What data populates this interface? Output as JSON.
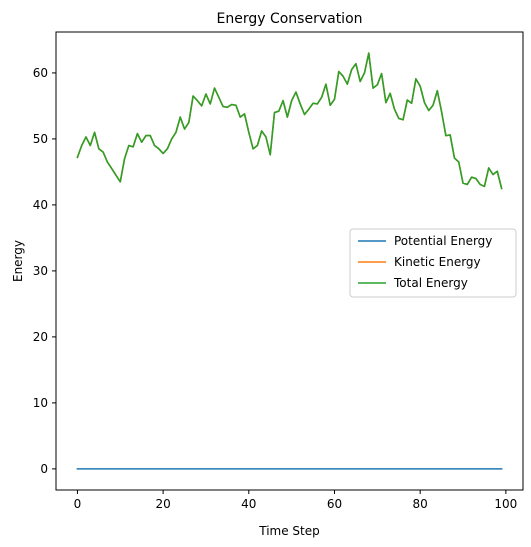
{
  "chart_data": {
    "type": "line",
    "title": "Energy Conservation",
    "xlabel": "Time Step",
    "ylabel": "Energy",
    "xlim": [
      -5,
      104
    ],
    "ylim": [
      -3.2,
      66.2
    ],
    "xticks": [
      0,
      20,
      40,
      60,
      80,
      100
    ],
    "yticks": [
      0,
      10,
      20,
      30,
      40,
      50,
      60
    ],
    "grid": false,
    "legend_position": "center-right",
    "colors": {
      "potential": "#1f77b4",
      "kinetic": "#ff7f0e",
      "total": "#2ca02c"
    },
    "series": [
      {
        "name": "Potential Energy",
        "color": "#1f77b4",
        "x": [
          0,
          99
        ],
        "values": [
          0,
          0
        ]
      },
      {
        "name": "Kinetic Energy",
        "color": "#ff7f0e",
        "x": [
          0,
          1,
          2,
          3,
          4,
          5,
          6,
          7,
          8,
          9,
          10,
          11,
          12,
          13,
          14,
          15,
          16,
          17,
          18,
          19,
          20,
          21,
          22,
          23,
          24,
          25,
          26,
          27,
          28,
          29,
          30,
          31,
          32,
          33,
          34,
          35,
          36,
          37,
          38,
          39,
          40,
          41,
          42,
          43,
          44,
          45,
          46,
          47,
          48,
          49,
          50,
          51,
          52,
          53,
          54,
          55,
          56,
          57,
          58,
          59,
          60,
          61,
          62,
          63,
          64,
          65,
          66,
          67,
          68,
          69,
          70,
          71,
          72,
          73,
          74,
          75,
          76,
          77,
          78,
          79,
          80,
          81,
          82,
          83,
          84,
          85,
          86,
          87,
          88,
          89,
          90,
          91,
          92,
          93,
          94,
          95,
          96,
          97,
          98,
          99
        ],
        "values": [
          47.2,
          49.0,
          50.3,
          49.0,
          51.0,
          48.5,
          48.0,
          46.5,
          45.5,
          44.5,
          43.5,
          47.0,
          49.0,
          48.8,
          50.8,
          49.5,
          50.5,
          50.5,
          49.0,
          48.5,
          47.8,
          48.5,
          50.0,
          51.0,
          53.3,
          51.5,
          52.5,
          56.5,
          55.8,
          55.0,
          56.8,
          55.3,
          57.7,
          56.3,
          54.9,
          54.8,
          55.2,
          55.1,
          53.3,
          53.8,
          51.0,
          48.5,
          49.0,
          51.2,
          50.3,
          47.6,
          54.0,
          54.2,
          55.8,
          53.3,
          55.8,
          57.1,
          55.3,
          53.7,
          54.5,
          55.4,
          55.3,
          56.3,
          58.3,
          55.1,
          56.0,
          60.2,
          59.5,
          58.3,
          60.5,
          61.4,
          58.7,
          60.0,
          63.0,
          57.7,
          58.2,
          59.9,
          55.5,
          56.9,
          54.5,
          53.1,
          52.9,
          55.9,
          55.4,
          59.1,
          58.0,
          55.5,
          54.3,
          55.1,
          57.3,
          54.1,
          50.5,
          50.6,
          47.1,
          46.5,
          43.3,
          43.1,
          44.2,
          44.0,
          43.1,
          42.8,
          45.6,
          44.6,
          45.1,
          42.5
        ]
      },
      {
        "name": "Total Energy",
        "color": "#2ca02c",
        "x": [
          0,
          1,
          2,
          3,
          4,
          5,
          6,
          7,
          8,
          9,
          10,
          11,
          12,
          13,
          14,
          15,
          16,
          17,
          18,
          19,
          20,
          21,
          22,
          23,
          24,
          25,
          26,
          27,
          28,
          29,
          30,
          31,
          32,
          33,
          34,
          35,
          36,
          37,
          38,
          39,
          40,
          41,
          42,
          43,
          44,
          45,
          46,
          47,
          48,
          49,
          50,
          51,
          52,
          53,
          54,
          55,
          56,
          57,
          58,
          59,
          60,
          61,
          62,
          63,
          64,
          65,
          66,
          67,
          68,
          69,
          70,
          71,
          72,
          73,
          74,
          75,
          76,
          77,
          78,
          79,
          80,
          81,
          82,
          83,
          84,
          85,
          86,
          87,
          88,
          89,
          90,
          91,
          92,
          93,
          94,
          95,
          96,
          97,
          98,
          99
        ],
        "values": [
          47.2,
          49.0,
          50.3,
          49.0,
          51.0,
          48.5,
          48.0,
          46.5,
          45.5,
          44.5,
          43.5,
          47.0,
          49.0,
          48.8,
          50.8,
          49.5,
          50.5,
          50.5,
          49.0,
          48.5,
          47.8,
          48.5,
          50.0,
          51.0,
          53.3,
          51.5,
          52.5,
          56.5,
          55.8,
          55.0,
          56.8,
          55.3,
          57.7,
          56.3,
          54.9,
          54.8,
          55.2,
          55.1,
          53.3,
          53.8,
          51.0,
          48.5,
          49.0,
          51.2,
          50.3,
          47.6,
          54.0,
          54.2,
          55.8,
          53.3,
          55.8,
          57.1,
          55.3,
          53.7,
          54.5,
          55.4,
          55.3,
          56.3,
          58.3,
          55.1,
          56.0,
          60.2,
          59.5,
          58.3,
          60.5,
          61.4,
          58.7,
          60.0,
          63.0,
          57.7,
          58.2,
          59.9,
          55.5,
          56.9,
          54.5,
          53.1,
          52.9,
          55.9,
          55.4,
          59.1,
          58.0,
          55.5,
          54.3,
          55.1,
          57.3,
          54.1,
          50.5,
          50.6,
          47.1,
          46.5,
          43.3,
          43.1,
          44.2,
          44.0,
          43.1,
          42.8,
          45.6,
          44.6,
          45.1,
          42.5
        ]
      }
    ]
  }
}
